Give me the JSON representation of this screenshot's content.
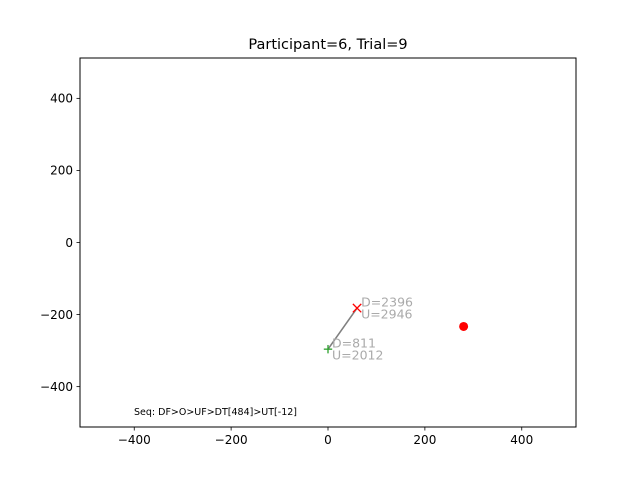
{
  "chart_data": {
    "type": "scatter",
    "title": "Participant=6, Trial=9",
    "xlabel": "",
    "ylabel": "",
    "xlim": [
      -512,
      512
    ],
    "ylim": [
      -512,
      512
    ],
    "x_ticks": [
      -400,
      -200,
      0,
      200,
      400
    ],
    "y_ticks": [
      -400,
      -200,
      0,
      200,
      400
    ],
    "x_tick_labels": [
      "−400",
      "−200",
      "0",
      "200",
      "400"
    ],
    "y_tick_labels": [
      "−400",
      "−200",
      "0",
      "200",
      "400"
    ],
    "grid": false,
    "legend": "none",
    "path": {
      "color": "#808080",
      "points": [
        {
          "x": 0,
          "y": -296
        },
        {
          "x": 60,
          "y": -182
        }
      ]
    },
    "markers": [
      {
        "name": "start",
        "symbol": "plus",
        "x": 0,
        "y": -296,
        "color": "#2ca02c",
        "labels": [
          "D=811",
          "U=2012"
        ]
      },
      {
        "name": "end",
        "symbol": "x",
        "x": 60,
        "y": -182,
        "color": "#ff0000",
        "labels": [
          "D=2396",
          "U=2946"
        ]
      },
      {
        "name": "target",
        "symbol": "circle",
        "x": 280,
        "y": -233,
        "color": "#ff0000",
        "labels": []
      }
    ],
    "label_color": "#aaaaaa",
    "annotation": "Seq: DF>O>UF>DT[484]>UT[-12]"
  }
}
